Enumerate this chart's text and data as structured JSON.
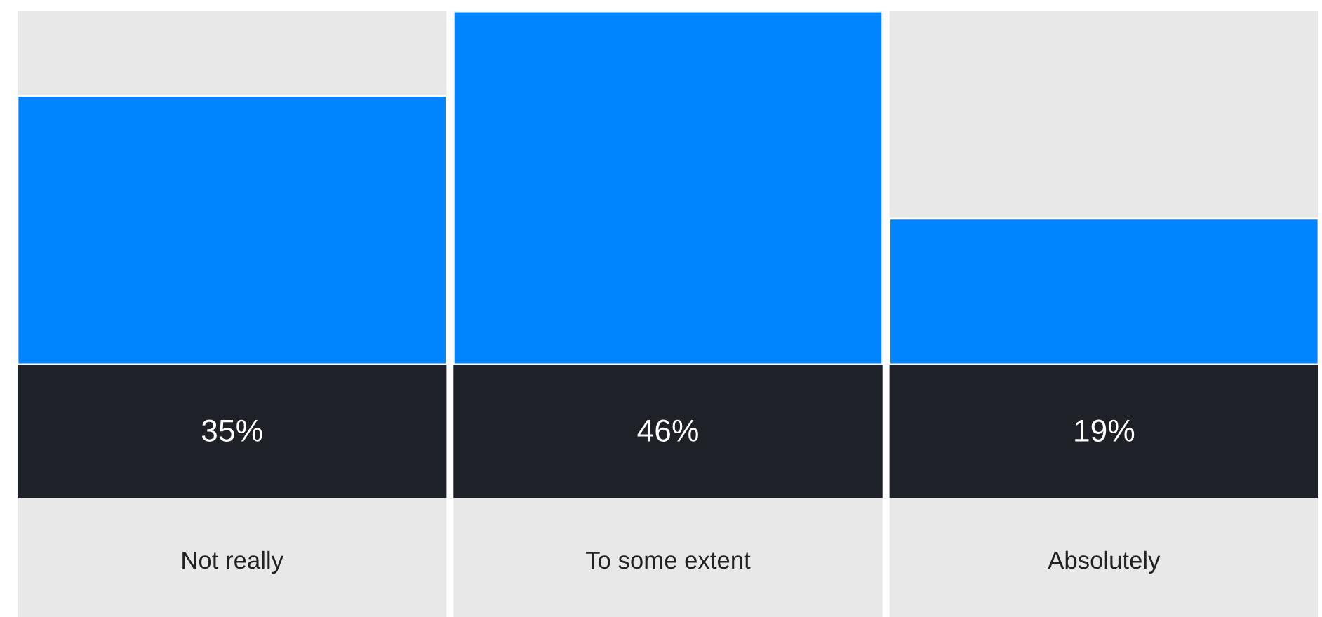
{
  "chart_data": {
    "type": "bar",
    "categories": [
      "Not really",
      "To some extent",
      "Absolutely"
    ],
    "values": [
      35,
      46,
      19
    ],
    "value_labels": [
      "35%",
      "46%",
      "19%"
    ],
    "color": "#0085ff"
  }
}
